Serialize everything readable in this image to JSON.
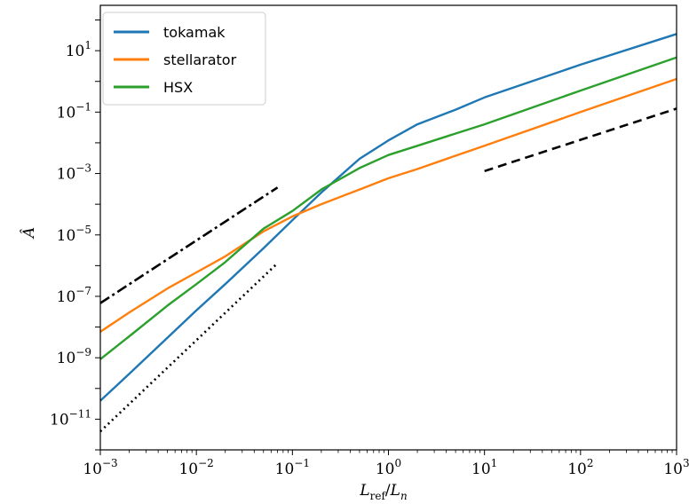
{
  "chart_data": {
    "type": "line",
    "xlabel": "L_ref/L_n",
    "ylabel": "Â",
    "xscale": "log",
    "yscale": "log",
    "xlim": [
      0.001,
      1000
    ],
    "ylim": [
      1e-12,
      300.0
    ],
    "legend_position": "top-left",
    "x_ticks": [
      {
        "base": "10",
        "exp": "−3",
        "value": 0.001
      },
      {
        "base": "10",
        "exp": "−2",
        "value": 0.01
      },
      {
        "base": "10",
        "exp": "−1",
        "value": 0.1
      },
      {
        "base": "10",
        "exp": "0",
        "value": 1
      },
      {
        "base": "10",
        "exp": "1",
        "value": 10
      },
      {
        "base": "10",
        "exp": "2",
        "value": 100
      },
      {
        "base": "10",
        "exp": "3",
        "value": 1000
      }
    ],
    "y_ticks": [
      {
        "base": "10",
        "exp": "−11",
        "value": 1e-11
      },
      {
        "base": "10",
        "exp": "−9",
        "value": 1e-09
      },
      {
        "base": "10",
        "exp": "−7",
        "value": 1e-07
      },
      {
        "base": "10",
        "exp": "−5",
        "value": 1e-05
      },
      {
        "base": "10",
        "exp": "−3",
        "value": 0.001
      },
      {
        "base": "10",
        "exp": "−1",
        "value": 0.1
      },
      {
        "base": "10",
        "exp": "1",
        "value": 10
      }
    ],
    "series": [
      {
        "name": "tokamak",
        "color": "#1f77b4",
        "dash": "solid",
        "legend": true,
        "x": [
          0.001,
          0.002,
          0.005,
          0.01,
          0.02,
          0.05,
          0.1,
          0.2,
          0.5,
          1,
          2,
          5,
          10,
          100,
          1000
        ],
        "y": [
          4e-11,
          3e-10,
          4.5e-09,
          3.5e-08,
          2.5e-07,
          3.7e-06,
          3e-05,
          0.00024,
          0.003,
          0.012,
          0.04,
          0.12,
          0.3,
          3.5,
          35
        ]
      },
      {
        "name": "stellarator",
        "color": "#ff7f0e",
        "dash": "solid",
        "legend": true,
        "x": [
          0.001,
          0.002,
          0.005,
          0.01,
          0.02,
          0.05,
          0.1,
          0.2,
          0.5,
          1,
          2,
          5,
          10,
          100,
          1000
        ],
        "y": [
          7e-09,
          3e-08,
          1.8e-07,
          6e-07,
          2e-06,
          1.3e-05,
          4e-05,
          0.0001,
          0.0003,
          0.0007,
          0.0014,
          0.0038,
          0.008,
          0.1,
          1.2
        ]
      },
      {
        "name": "HSX",
        "color": "#2ca02c",
        "dash": "solid",
        "legend": true,
        "x": [
          0.001,
          0.002,
          0.005,
          0.01,
          0.02,
          0.05,
          0.1,
          0.2,
          0.5,
          1,
          2,
          5,
          10,
          100,
          1000
        ],
        "y": [
          9e-10,
          5e-09,
          5e-08,
          2.5e-07,
          1.3e-06,
          1.6e-05,
          6e-05,
          0.0003,
          0.0015,
          0.004,
          0.008,
          0.02,
          0.04,
          0.5,
          6
        ]
      },
      {
        "name": "",
        "color": "#000000",
        "dash": "dashdot",
        "legend": false,
        "x": [
          0.001,
          0.07
        ],
        "y": [
          6e-08,
          0.00035
        ]
      },
      {
        "name": "",
        "color": "#000000",
        "dash": "dotted",
        "legend": false,
        "x": [
          0.001,
          0.07
        ],
        "y": [
          4e-12,
          1.2e-06
        ]
      },
      {
        "name": "",
        "color": "#000000",
        "dash": "dashed",
        "legend": false,
        "x": [
          10,
          1000
        ],
        "y": [
          0.0012,
          0.13
        ]
      }
    ]
  }
}
